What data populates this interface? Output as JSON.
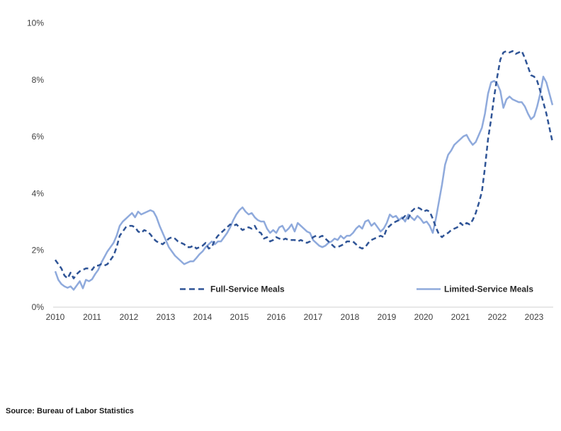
{
  "source_note": "Source: Bureau of Labor Statistics",
  "chart_data": {
    "type": "line",
    "title": "",
    "xlabel": "",
    "ylabel": "",
    "frequency": "monthly",
    "x_start": "2010-01",
    "x_end": "2023-07",
    "ylim": [
      0,
      10
    ],
    "y_unit": "percent",
    "grid": false,
    "legend_position": "inside-bottom",
    "axis_color": "#d9d9d9",
    "label_color": "#3f3f3f",
    "background_color": "#ffffff",
    "x_tick_labels": [
      "2010",
      "2011",
      "2012",
      "2013",
      "2014",
      "2015",
      "2016",
      "2017",
      "2018",
      "2019",
      "2020",
      "2021",
      "2022",
      "2023"
    ],
    "y_tick_labels": [
      "0%",
      "2%",
      "4%",
      "6%",
      "8%",
      "10%"
    ],
    "y_tick_values": [
      0,
      2,
      4,
      6,
      8,
      10
    ],
    "series": [
      {
        "name": "Full-Service Meals",
        "style": "dashed",
        "color": "#2F5496",
        "values": [
          1.65,
          1.5,
          1.35,
          1.1,
          1.0,
          1.2,
          1.0,
          1.15,
          1.25,
          1.3,
          1.35,
          1.35,
          1.3,
          1.45,
          1.45,
          1.5,
          1.45,
          1.5,
          1.65,
          1.8,
          2.1,
          2.5,
          2.65,
          2.8,
          2.85,
          2.85,
          2.8,
          2.65,
          2.6,
          2.7,
          2.65,
          2.55,
          2.4,
          2.3,
          2.25,
          2.2,
          2.3,
          2.4,
          2.45,
          2.4,
          2.3,
          2.25,
          2.2,
          2.1,
          2.1,
          2.15,
          2.05,
          2.1,
          2.15,
          2.25,
          2.05,
          2.1,
          2.35,
          2.5,
          2.6,
          2.7,
          2.8,
          2.9,
          2.85,
          2.9,
          2.8,
          2.7,
          2.75,
          2.8,
          2.75,
          2.85,
          2.65,
          2.6,
          2.4,
          2.45,
          2.3,
          2.35,
          2.45,
          2.4,
          2.35,
          2.4,
          2.35,
          2.35,
          2.35,
          2.3,
          2.35,
          2.3,
          2.25,
          2.3,
          2.45,
          2.5,
          2.45,
          2.5,
          2.4,
          2.3,
          2.2,
          2.1,
          2.1,
          2.15,
          2.2,
          2.3,
          2.3,
          2.3,
          2.2,
          2.1,
          2.05,
          2.1,
          2.25,
          2.35,
          2.4,
          2.45,
          2.5,
          2.45,
          2.75,
          2.85,
          2.95,
          3.0,
          3.05,
          3.1,
          3.2,
          3.1,
          3.35,
          3.45,
          3.5,
          3.45,
          3.35,
          3.4,
          3.35,
          3.1,
          2.8,
          2.55,
          2.45,
          2.55,
          2.6,
          2.7,
          2.75,
          2.8,
          2.95,
          2.85,
          2.95,
          2.9,
          3.05,
          3.3,
          3.65,
          4.05,
          4.9,
          5.9,
          6.6,
          7.4,
          8.1,
          8.7,
          8.95,
          9.0,
          8.95,
          9.0,
          8.9,
          8.95,
          9.0,
          8.75,
          8.45,
          8.15,
          8.1,
          7.95,
          7.6,
          7.2,
          6.8,
          6.3,
          5.8
        ]
      },
      {
        "name": "Limited-Service Meals",
        "style": "solid",
        "color": "#8FAADC",
        "values": [
          1.25,
          0.95,
          0.8,
          0.72,
          0.67,
          0.72,
          0.6,
          0.75,
          0.9,
          0.65,
          0.95,
          0.9,
          0.97,
          1.15,
          1.3,
          1.55,
          1.75,
          1.95,
          2.1,
          2.25,
          2.5,
          2.85,
          3.0,
          3.1,
          3.2,
          3.3,
          3.15,
          3.35,
          3.25,
          3.3,
          3.35,
          3.4,
          3.35,
          3.15,
          2.85,
          2.6,
          2.35,
          2.1,
          1.95,
          1.8,
          1.7,
          1.6,
          1.5,
          1.55,
          1.6,
          1.6,
          1.72,
          1.85,
          1.95,
          2.1,
          2.2,
          2.3,
          2.2,
          2.3,
          2.3,
          2.45,
          2.6,
          2.8,
          3.05,
          3.25,
          3.4,
          3.5,
          3.35,
          3.25,
          3.3,
          3.15,
          3.05,
          3.0,
          3.0,
          2.75,
          2.6,
          2.7,
          2.6,
          2.8,
          2.85,
          2.65,
          2.75,
          2.9,
          2.65,
          2.95,
          2.85,
          2.75,
          2.65,
          2.6,
          2.35,
          2.25,
          2.15,
          2.1,
          2.15,
          2.25,
          2.3,
          2.4,
          2.35,
          2.5,
          2.4,
          2.5,
          2.5,
          2.6,
          2.75,
          2.85,
          2.75,
          3.0,
          3.05,
          2.85,
          2.95,
          2.8,
          2.65,
          2.75,
          2.95,
          3.25,
          3.15,
          3.2,
          3.05,
          3.15,
          3.0,
          3.25,
          3.15,
          3.05,
          3.2,
          3.1,
          2.95,
          3.0,
          2.85,
          2.6,
          3.1,
          3.7,
          4.3,
          5.0,
          5.35,
          5.5,
          5.7,
          5.8,
          5.9,
          6.0,
          6.05,
          5.85,
          5.7,
          5.8,
          6.05,
          6.3,
          6.8,
          7.5,
          7.9,
          7.95,
          7.85,
          7.6,
          7.0,
          7.3,
          7.4,
          7.3,
          7.25,
          7.2,
          7.2,
          7.05,
          6.8,
          6.6,
          6.7,
          7.05,
          7.5,
          8.1,
          7.9,
          7.5,
          7.1
        ]
      }
    ]
  }
}
